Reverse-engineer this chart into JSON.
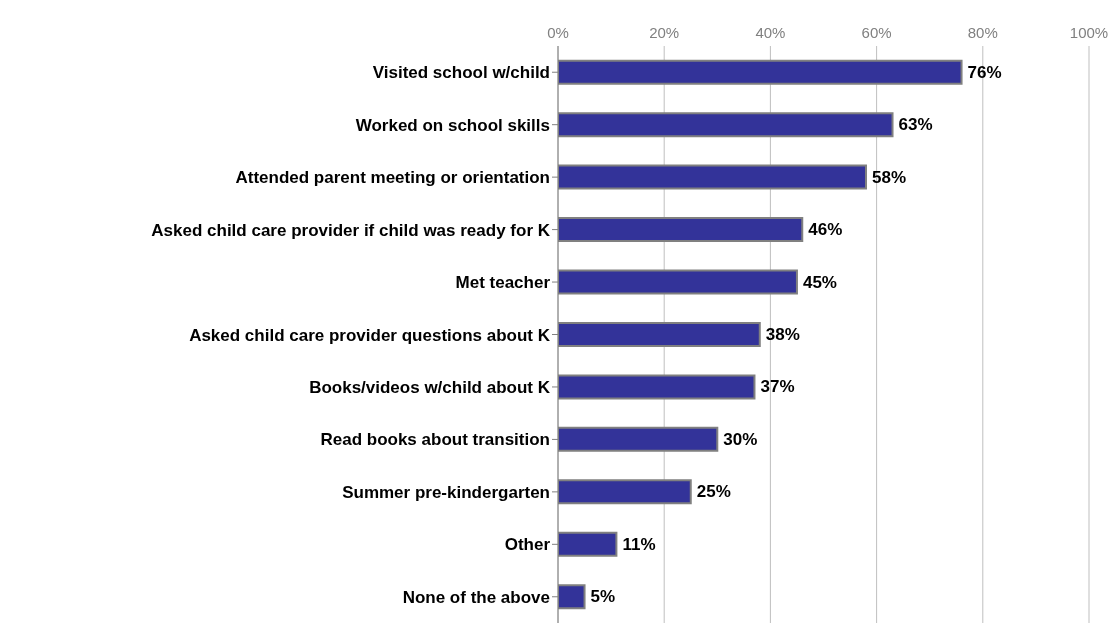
{
  "chart_data": {
    "type": "bar",
    "orientation": "horizontal",
    "categories": [
      "Visited school w/child",
      "Worked on school skills",
      "Attended parent meeting or orientation",
      "Asked child care provider if child was ready for K",
      "Met teacher",
      "Asked child care provider questions about K",
      "Books/videos w/child about K",
      "Read books about transition",
      "Summer pre-kindergarten",
      "Other",
      "None of the above"
    ],
    "values": [
      76,
      63,
      58,
      46,
      45,
      38,
      37,
      30,
      25,
      11,
      5
    ],
    "value_labels": [
      "76%",
      "63%",
      "58%",
      "46%",
      "45%",
      "38%",
      "37%",
      "30%",
      "25%",
      "11%",
      "5%"
    ],
    "color": "#333399",
    "xlim": [
      0,
      100
    ],
    "xticks": [
      {
        "value": 0,
        "label": "0%"
      },
      {
        "value": 20,
        "label": "20%"
      },
      {
        "value": 40,
        "label": "40%"
      },
      {
        "value": 60,
        "label": "60%"
      },
      {
        "value": 80,
        "label": "80%"
      },
      {
        "value": 100,
        "label": "100%"
      }
    ],
    "grid": "x"
  }
}
